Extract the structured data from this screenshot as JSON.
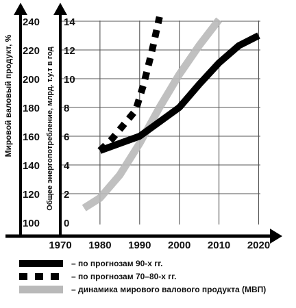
{
  "chart_data": {
    "type": "line",
    "title": "",
    "xlabel": "",
    "ylabel_left": "Мировой валовый продукт, %",
    "ylabel_right": "Общее энергопотребление, млрд. т.у.т в год",
    "x_ticks": [
      "1970",
      "1980",
      "1990",
      "2000",
      "2010",
      "2020"
    ],
    "y_left_ticks": [
      "100",
      "120",
      "140",
      "160",
      "180",
      "200",
      "220",
      "240"
    ],
    "y_right_ticks": [
      "0",
      "2",
      "4",
      "6",
      "8",
      "10",
      "12",
      "14"
    ],
    "xlim": [
      1970,
      2020
    ],
    "ylim_left": [
      100,
      240
    ],
    "ylim_right": [
      0,
      14
    ],
    "grid": true,
    "series": [
      {
        "name": "– по прогнозам 90-х гг.",
        "axis": "right",
        "style": "solid-thick",
        "color": "#000000",
        "x": [
          1980,
          1985,
          1990,
          1995,
          2000,
          2005,
          2010,
          2015,
          2020
        ],
        "y": [
          5.0,
          5.5,
          6.0,
          7.0,
          8.0,
          9.6,
          11.1,
          12.3,
          13.0
        ]
      },
      {
        "name": "– по прогнозам 70–80-х гг.",
        "axis": "right",
        "style": "dashed-thick",
        "color": "#000000",
        "x": [
          1980,
          1983,
          1986,
          1989,
          1991,
          1993,
          1995
        ],
        "y": [
          5.0,
          5.8,
          6.8,
          7.8,
          9.6,
          11.8,
          14.3
        ]
      },
      {
        "name": "– динамика мирового валового продукта (МВП)",
        "axis": "left",
        "style": "solid-thick-gray",
        "color": "#b9b9b9",
        "x": [
          1976,
          1980,
          1985,
          1990,
          1995,
          2000,
          2005,
          2010
        ],
        "y": [
          110,
          117,
          133,
          155,
          180,
          203,
          223,
          241
        ]
      }
    ]
  }
}
